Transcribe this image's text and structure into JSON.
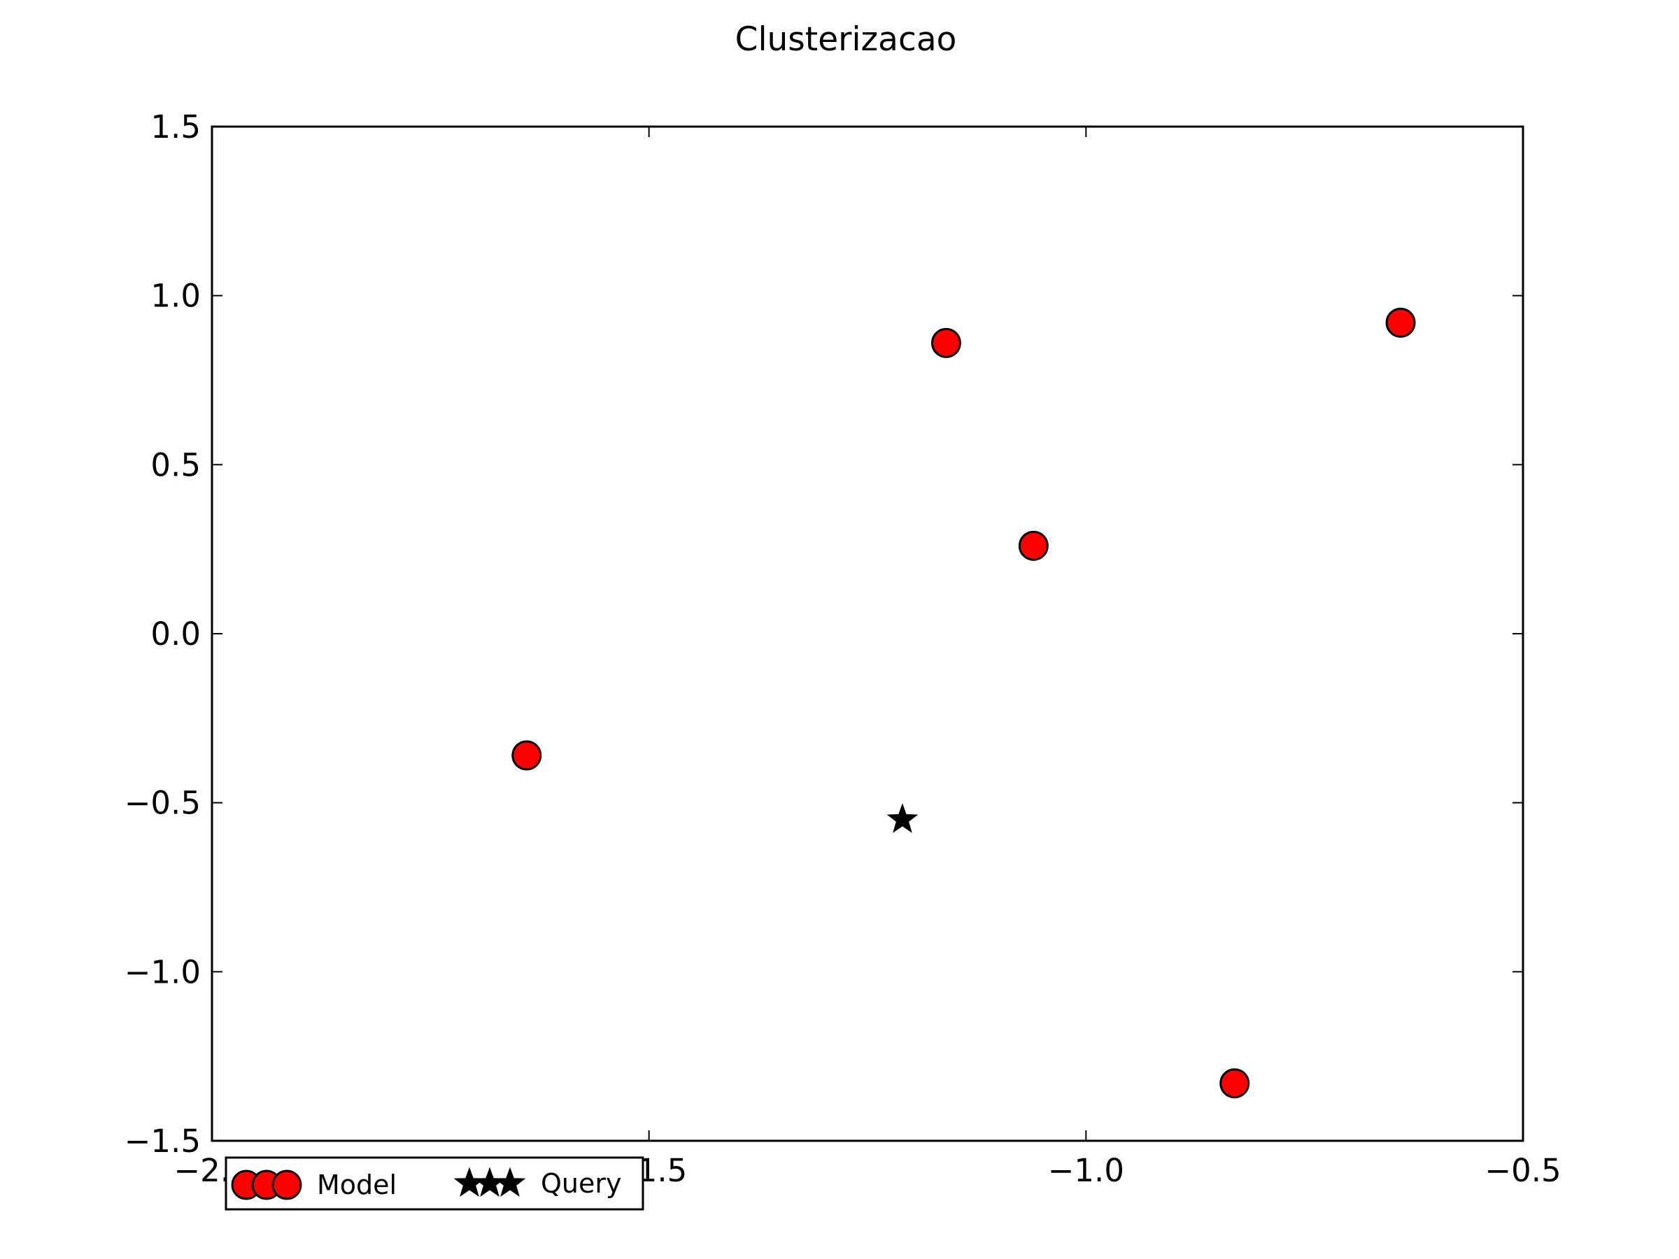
{
  "chart_data": {
    "type": "scatter",
    "title": "Clusterizacao",
    "xlabel": "",
    "ylabel": "",
    "xlim": [
      -2.0,
      -0.5
    ],
    "ylim": [
      -1.5,
      1.5
    ],
    "grid": false,
    "x_ticks": [
      -2.0,
      -1.5,
      -1.0,
      -0.5
    ],
    "x_tick_labels": [
      "−2.0",
      "−1.5",
      "−1.0",
      "−0.5"
    ],
    "y_ticks": [
      -1.5,
      -1.0,
      -0.5,
      0.0,
      0.5,
      1.0,
      1.5
    ],
    "y_tick_labels": [
      "−1.5",
      "−1.0",
      "−0.5",
      "0.0",
      "0.5",
      "1.0",
      "1.5"
    ],
    "legend_position": "lower-left",
    "series": [
      {
        "name": "Model",
        "marker": "circle",
        "color": "#ff0000",
        "edge_color": "#000000",
        "points": [
          {
            "x": -1.64,
            "y": -0.36
          },
          {
            "x": -1.16,
            "y": 0.86
          },
          {
            "x": -1.06,
            "y": 0.26
          },
          {
            "x": -0.64,
            "y": 0.92
          },
          {
            "x": -0.83,
            "y": -1.33
          }
        ]
      },
      {
        "name": "Query",
        "marker": "star",
        "color": "#000000",
        "points": [
          {
            "x": -1.21,
            "y": -0.55
          }
        ]
      }
    ]
  }
}
